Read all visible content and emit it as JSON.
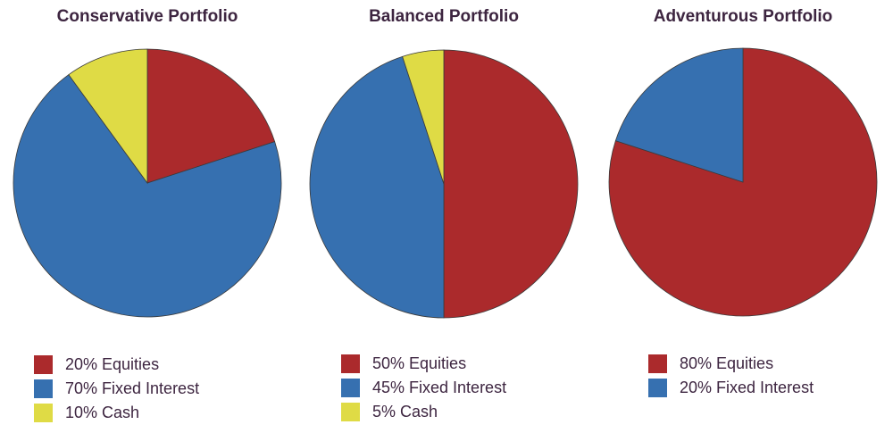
{
  "colors": {
    "equities": "#ab2a2c",
    "fixed_interest": "#3670b0",
    "cash": "#dfdb45",
    "text": "#3d2540",
    "stroke": "#3a3a3a"
  },
  "charts": [
    {
      "title": "Conservative Portfolio",
      "legend": [
        {
          "label": "20% Equities",
          "color": "#ab2a2c"
        },
        {
          "label": "70% Fixed Interest",
          "color": "#3670b0"
        },
        {
          "label": "10% Cash",
          "color": "#dfdb45"
        }
      ]
    },
    {
      "title": "Balanced Portfolio",
      "legend": [
        {
          "label": "50% Equities",
          "color": "#ab2a2c"
        },
        {
          "label": "45% Fixed Interest",
          "color": "#3670b0"
        },
        {
          "label": "5% Cash",
          "color": "#dfdb45"
        }
      ]
    },
    {
      "title": "Adventurous Portfolio",
      "legend": [
        {
          "label": "80% Equities",
          "color": "#ab2a2c"
        },
        {
          "label": "20% Fixed Interest",
          "color": "#3670b0"
        }
      ]
    }
  ],
  "chart_data": [
    {
      "type": "pie",
      "title": "Conservative Portfolio",
      "categories": [
        "Equities",
        "Fixed Interest",
        "Cash"
      ],
      "values": [
        20,
        70,
        10
      ],
      "colors": [
        "#ab2a2c",
        "#3670b0",
        "#dfdb45"
      ],
      "start_angle": "12 o'clock, clockwise",
      "legend_position": "bottom"
    },
    {
      "type": "pie",
      "title": "Balanced Portfolio",
      "categories": [
        "Equities",
        "Fixed Interest",
        "Cash"
      ],
      "values": [
        50,
        45,
        5
      ],
      "colors": [
        "#ab2a2c",
        "#3670b0",
        "#dfdb45"
      ],
      "start_angle": "12 o'clock, clockwise",
      "legend_position": "bottom"
    },
    {
      "type": "pie",
      "title": "Adventurous Portfolio",
      "categories": [
        "Equities",
        "Fixed Interest"
      ],
      "values": [
        80,
        20
      ],
      "colors": [
        "#ab2a2c",
        "#3670b0"
      ],
      "start_angle": "12 o'clock, clockwise",
      "legend_position": "bottom"
    }
  ]
}
